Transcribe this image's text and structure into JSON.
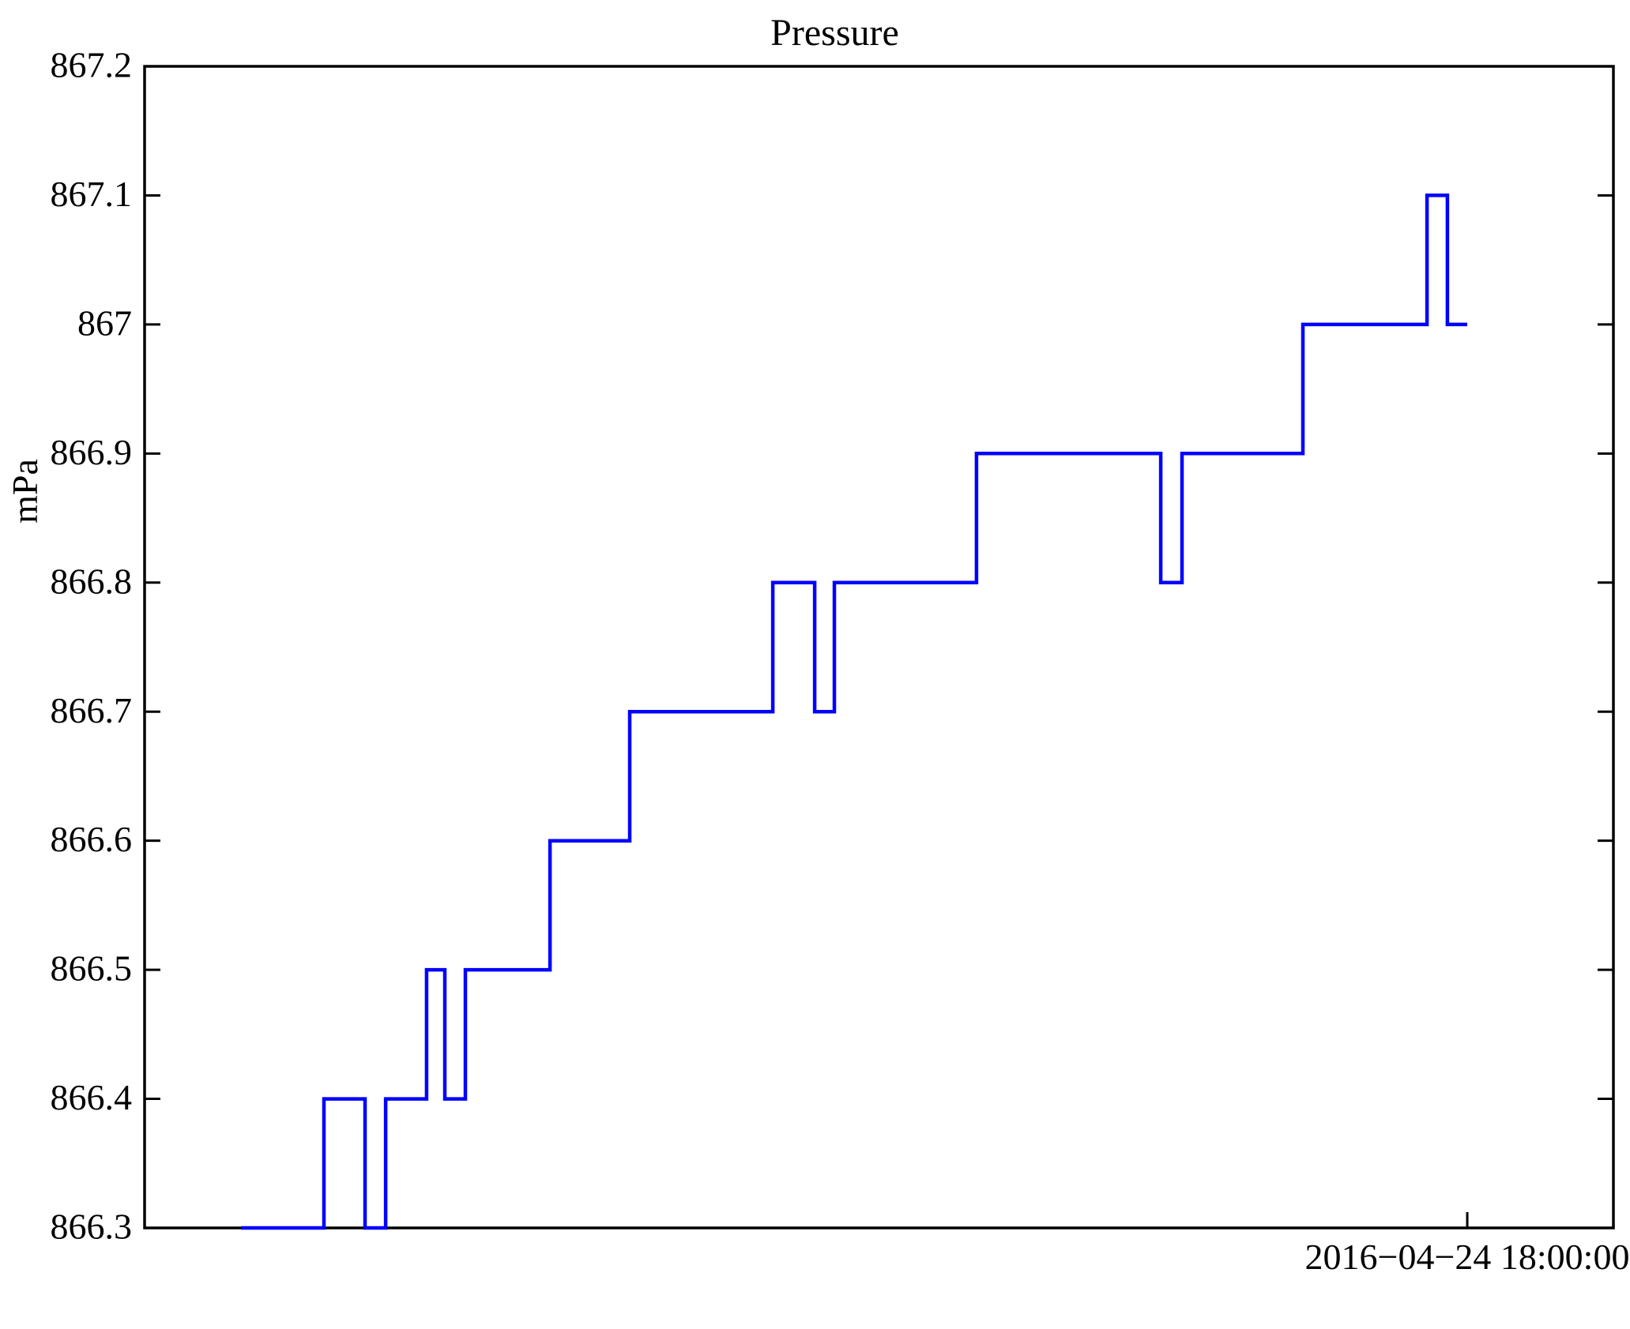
{
  "figure": {
    "background": "#ffffff",
    "text_color": "#000000"
  },
  "chart_data": {
    "type": "line",
    "subtype": "step",
    "title": "Pressure",
    "xlabel": "",
    "ylabel": "mPa",
    "ylim": [
      866.3,
      867.2
    ],
    "grid": "off",
    "legend": "none",
    "line_color": "#0000ff",
    "axis_color": "#000000",
    "yticks": {
      "values": [
        866.3,
        866.4,
        866.5,
        866.6,
        866.7,
        866.8,
        866.9,
        867.0,
        867.1,
        867.2
      ],
      "labels": [
        "866.3",
        "866.4",
        "866.5",
        "866.6",
        "866.7",
        "866.8",
        "866.9",
        "867",
        "867.1",
        "867.2"
      ]
    },
    "x_axis": {
      "tick_label": "2016−04−24 18:00:00",
      "tick_frac": 0.9005,
      "note": "single labeled time tick; x positions recorded as fraction of axis width"
    },
    "series": [
      {
        "name": "Pressure",
        "unit": "mPa",
        "segments": [
          {
            "from": 0.0656,
            "to": 0.1221,
            "value": 866.3
          },
          {
            "from": 0.1221,
            "to": 0.1501,
            "value": 866.4
          },
          {
            "from": 0.1501,
            "to": 0.1641,
            "value": 866.3
          },
          {
            "from": 0.1641,
            "to": 0.192,
            "value": 866.4
          },
          {
            "from": 0.192,
            "to": 0.2044,
            "value": 866.5
          },
          {
            "from": 0.2044,
            "to": 0.2184,
            "value": 866.4
          },
          {
            "from": 0.2184,
            "to": 0.276,
            "value": 866.5
          },
          {
            "from": 0.276,
            "to": 0.3303,
            "value": 866.6
          },
          {
            "from": 0.3303,
            "to": 0.4277,
            "value": 866.7
          },
          {
            "from": 0.4277,
            "to": 0.4562,
            "value": 866.8
          },
          {
            "from": 0.4562,
            "to": 0.4696,
            "value": 866.7
          },
          {
            "from": 0.4696,
            "to": 0.5664,
            "value": 866.8
          },
          {
            "from": 0.5664,
            "to": 0.6918,
            "value": 866.9
          },
          {
            "from": 0.6918,
            "to": 0.7063,
            "value": 866.8
          },
          {
            "from": 0.7063,
            "to": 0.7886,
            "value": 866.9
          },
          {
            "from": 0.7886,
            "to": 0.8731,
            "value": 867.0
          },
          {
            "from": 0.8731,
            "to": 0.887,
            "value": 867.1
          },
          {
            "from": 0.887,
            "to": 0.9005,
            "value": 867.0
          }
        ]
      }
    ]
  }
}
